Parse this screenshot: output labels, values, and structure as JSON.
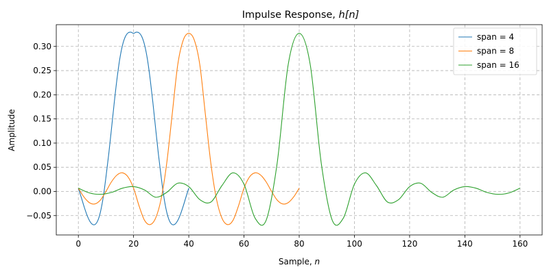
{
  "chart_data": {
    "type": "line",
    "title_text": "Impulse Response, ",
    "title_math": "h[n]",
    "xlabel_text": "Sample, ",
    "xlabel_math": "n",
    "ylabel": "Amplitude",
    "xlim": [
      -8,
      168
    ],
    "ylim": [
      -0.09,
      0.345
    ],
    "xticks": [
      0,
      20,
      40,
      60,
      80,
      100,
      120,
      140,
      160
    ],
    "yticks": [
      -0.05,
      0.0,
      0.05,
      0.1,
      0.15,
      0.2,
      0.25,
      0.3
    ],
    "ytick_labels": [
      "−0.05",
      "0.00",
      "0.05",
      "0.10",
      "0.15",
      "0.20",
      "0.25",
      "0.30"
    ],
    "grid": true,
    "legend_position": "top-right",
    "series": [
      {
        "name": "span = 4",
        "color": "#1f77b4",
        "x": [
          0,
          1,
          2,
          3,
          4,
          5,
          6,
          7,
          8,
          9,
          10,
          11,
          12,
          13,
          14,
          15,
          16,
          17,
          18,
          19,
          20,
          21,
          22,
          23,
          24,
          25,
          26,
          27,
          28,
          29,
          30,
          31,
          32,
          33,
          34,
          35,
          36,
          37,
          38,
          39,
          40
        ],
        "y": [
          0.0068,
          -0.0113,
          -0.03,
          -0.047,
          -0.06,
          -0.0676,
          -0.0685,
          -0.0609,
          -0.0425,
          -0.0122,
          0.03,
          0.077,
          0.1297,
          0.1838,
          0.233,
          0.274,
          0.3027,
          0.32,
          0.328,
          0.3295,
          0.327,
          0.3295,
          0.328,
          0.32,
          0.3027,
          0.274,
          0.233,
          0.1838,
          0.1297,
          0.077,
          0.03,
          -0.0122,
          -0.0425,
          -0.0609,
          -0.0685,
          -0.0676,
          -0.06,
          -0.047,
          -0.03,
          -0.0113,
          0.0068
        ]
      },
      {
        "name": "span = 8",
        "color": "#ff7f0e",
        "x": [
          0,
          2,
          4,
          6,
          8,
          10,
          12,
          14,
          16,
          18,
          20,
          22,
          24,
          26,
          28,
          30,
          32,
          34,
          36,
          38,
          40,
          42,
          44,
          46,
          48,
          50,
          52,
          54,
          56,
          58,
          60,
          62,
          64,
          66,
          68,
          70,
          72,
          74,
          76,
          78,
          80
        ],
        "y": [
          0.0068,
          -0.0113,
          -0.0232,
          -0.0258,
          -0.0177,
          0.0,
          0.02,
          0.034,
          0.0385,
          0.03,
          0.0068,
          -0.03,
          -0.06,
          -0.0685,
          -0.055,
          -0.015,
          0.058,
          0.16,
          0.262,
          0.313,
          0.327,
          0.313,
          0.262,
          0.16,
          0.058,
          -0.015,
          -0.055,
          -0.0685,
          -0.06,
          -0.03,
          0.0068,
          0.03,
          0.0385,
          0.034,
          0.02,
          0.0,
          -0.0177,
          -0.0258,
          -0.0232,
          -0.0113,
          0.0068
        ]
      },
      {
        "name": "span = 16",
        "color": "#2ca02c",
        "x": [
          0,
          4,
          8,
          12,
          16,
          20,
          24,
          28,
          32,
          36,
          40,
          44,
          48,
          52,
          56,
          60,
          64,
          68,
          72,
          76,
          80,
          84,
          88,
          92,
          96,
          100,
          104,
          108,
          112,
          116,
          120,
          124,
          128,
          132,
          136,
          140,
          144,
          148,
          152,
          156,
          160
        ],
        "y": [
          0.0068,
          -0.003,
          -0.006,
          -0.002,
          0.0068,
          0.01,
          0.003,
          -0.012,
          -0.002,
          0.017,
          0.01,
          -0.017,
          -0.022,
          0.012,
          0.0385,
          0.015,
          -0.055,
          -0.06,
          0.058,
          0.262,
          0.327,
          0.262,
          0.058,
          -0.06,
          -0.055,
          0.015,
          0.0385,
          0.012,
          -0.022,
          -0.017,
          0.01,
          0.017,
          -0.002,
          -0.012,
          0.003,
          0.01,
          0.0068,
          -0.002,
          -0.006,
          -0.003,
          0.0068
        ]
      }
    ]
  }
}
